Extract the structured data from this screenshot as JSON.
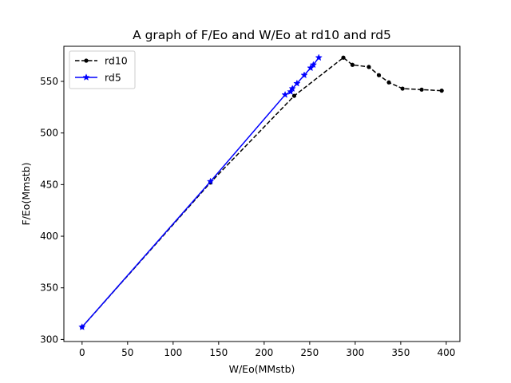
{
  "chart_data": {
    "type": "line",
    "title": "A graph of F/Eo and W/Eo at rd10 and rd5",
    "xlabel": "W/Eo(MMstb)",
    "ylabel": "F/Eo(Mmstb)",
    "xlim": [
      -20,
      415
    ],
    "ylim": [
      298,
      584
    ],
    "xticks": [
      0,
      50,
      100,
      150,
      200,
      250,
      300,
      350,
      400
    ],
    "yticks": [
      300,
      350,
      400,
      450,
      500,
      550
    ],
    "grid": false,
    "legend": "top-left",
    "series": [
      {
        "name": "rd10",
        "color": "#000000",
        "line_style": "dashed",
        "marker": "circle",
        "x": [
          0,
          141,
          233,
          287,
          297,
          315,
          326,
          337,
          352,
          373,
          395
        ],
        "y": [
          312,
          452,
          536,
          573,
          566,
          564,
          556,
          549,
          543,
          542,
          541
        ]
      },
      {
        "name": "rd5",
        "color": "#0000ff",
        "line_style": "solid",
        "marker": "star",
        "x": [
          0,
          141,
          223,
          229,
          231,
          236,
          244,
          251,
          254,
          260
        ],
        "y": [
          312,
          453,
          537,
          540,
          543,
          548,
          556,
          563,
          566,
          573
        ]
      }
    ]
  }
}
